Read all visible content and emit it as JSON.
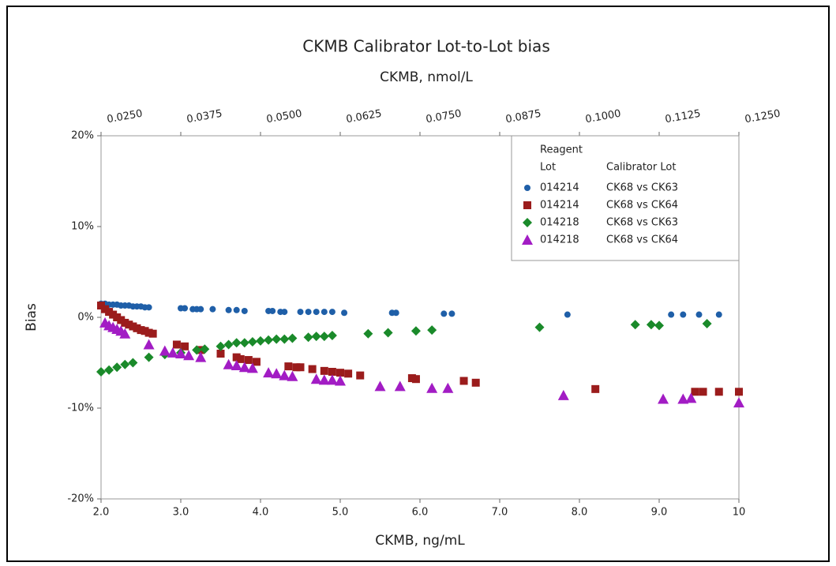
{
  "chart_data": {
    "type": "scatter",
    "title": "CKMB Calibrator Lot-to-Lot bias",
    "x2_label": "CKMB, nmol/L",
    "x_label": "CKMB, ng/mL",
    "y_label": "Bias",
    "xlim": [
      2,
      10
    ],
    "xticks": [
      {
        "value": 2,
        "label": "2.0"
      },
      {
        "value": 3,
        "label": "3.0"
      },
      {
        "value": 4,
        "label": "4.0"
      },
      {
        "value": 5,
        "label": "5.0"
      },
      {
        "value": 6,
        "label": "6.0"
      },
      {
        "value": 7,
        "label": "7.0"
      },
      {
        "value": 8,
        "label": "8.0"
      },
      {
        "value": 9,
        "label": "9.0"
      },
      10
    ],
    "x2lim": [
      0.025,
      0.125
    ],
    "x2ticks": [
      {
        "value": 0.025,
        "label": "0.0250"
      },
      {
        "value": 0.0375,
        "label": "0.0375"
      },
      {
        "value": 0.05,
        "label": "0.0500"
      },
      {
        "value": 0.0625,
        "label": "0.0625"
      },
      {
        "value": 0.075,
        "label": "0.0750"
      },
      {
        "value": 0.0875,
        "label": "0.0875"
      },
      {
        "value": 0.1,
        "label": "0.1000"
      },
      {
        "value": 0.1125,
        "label": "0.1125"
      },
      {
        "value": 0.125,
        "label": "0.1250"
      }
    ],
    "ylim": [
      -20,
      20
    ],
    "yticks": [
      {
        "value": -20,
        "label": "-20%"
      },
      {
        "value": -10,
        "label": "-10%"
      },
      {
        "value": 0,
        "label": "0%"
      },
      {
        "value": 10,
        "label": "10%"
      },
      {
        "value": 20,
        "label": "20%"
      }
    ],
    "legend_columns": [
      [
        "Reagent",
        "Lot"
      ],
      [
        "Calibrator Lot"
      ]
    ],
    "legend_position": "upper right",
    "series": [
      {
        "reagent_lot": "014214",
        "name": "CK68 vs CK63",
        "color": "#1f5fa8",
        "marker": "circle",
        "x": [
          2.0,
          2.05,
          2.1,
          2.15,
          2.2,
          2.25,
          2.3,
          2.35,
          2.4,
          2.45,
          2.5,
          2.55,
          2.6,
          3.0,
          3.05,
          3.15,
          3.2,
          3.25,
          3.4,
          3.6,
          3.7,
          3.8,
          4.1,
          4.15,
          4.25,
          4.3,
          4.5,
          4.6,
          4.7,
          4.8,
          4.9,
          5.05,
          5.65,
          5.7,
          6.3,
          6.4,
          7.85,
          9.15,
          9.3,
          9.5,
          9.75
        ],
        "values": [
          1.5,
          1.5,
          1.4,
          1.4,
          1.4,
          1.3,
          1.3,
          1.3,
          1.2,
          1.2,
          1.2,
          1.1,
          1.1,
          1.0,
          1.0,
          0.9,
          0.9,
          0.9,
          0.9,
          0.8,
          0.8,
          0.7,
          0.7,
          0.7,
          0.6,
          0.6,
          0.6,
          0.6,
          0.6,
          0.6,
          0.6,
          0.5,
          0.5,
          0.5,
          0.4,
          0.4,
          0.3,
          0.3,
          0.3,
          0.3,
          0.3
        ]
      },
      {
        "reagent_lot": "014214",
        "name": "CK68 vs CK64",
        "color": "#9b1c1c",
        "marker": "square",
        "x": [
          2.0,
          2.05,
          2.1,
          2.15,
          2.2,
          2.25,
          2.3,
          2.35,
          2.4,
          2.45,
          2.5,
          2.55,
          2.6,
          2.65,
          2.95,
          3.05,
          3.25,
          3.5,
          3.7,
          3.75,
          3.85,
          3.95,
          4.35,
          4.45,
          4.5,
          4.65,
          4.8,
          4.9,
          5.0,
          5.1,
          5.25,
          5.9,
          5.95,
          6.55,
          6.7,
          8.2,
          9.45,
          9.55,
          9.75,
          10.0
        ],
        "values": [
          1.3,
          0.9,
          0.6,
          0.3,
          0,
          -0.3,
          -0.6,
          -0.8,
          -1.0,
          -1.2,
          -1.4,
          -1.5,
          -1.7,
          -1.8,
          -3.0,
          -3.2,
          -3.6,
          -4.0,
          -4.4,
          -4.6,
          -4.7,
          -4.9,
          -5.4,
          -5.5,
          -5.5,
          -5.7,
          -5.9,
          -6.0,
          -6.1,
          -6.2,
          -6.4,
          -6.7,
          -6.8,
          -7.0,
          -7.2,
          -7.9,
          -8.2,
          -8.2,
          -8.2,
          -8.2
        ]
      },
      {
        "reagent_lot": "014218",
        "name": "CK68 vs CK63",
        "color": "#1a8a2a",
        "marker": "diamond",
        "x": [
          2.0,
          2.1,
          2.2,
          2.3,
          2.4,
          2.6,
          2.8,
          3.0,
          3.2,
          3.3,
          3.5,
          3.6,
          3.7,
          3.8,
          3.9,
          4.0,
          4.1,
          4.2,
          4.3,
          4.4,
          4.6,
          4.7,
          4.8,
          4.9,
          5.35,
          5.6,
          5.95,
          6.15,
          7.5,
          8.7,
          8.9,
          9.0,
          9.6
        ],
        "values": [
          -6.0,
          -5.8,
          -5.5,
          -5.2,
          -5.0,
          -4.4,
          -4.1,
          -3.9,
          -3.6,
          -3.5,
          -3.2,
          -3.0,
          -2.8,
          -2.8,
          -2.7,
          -2.6,
          -2.5,
          -2.4,
          -2.4,
          -2.3,
          -2.2,
          -2.1,
          -2.1,
          -2.0,
          -1.8,
          -1.7,
          -1.5,
          -1.4,
          -1.1,
          -0.8,
          -0.8,
          -0.9,
          -0.7
        ]
      },
      {
        "reagent_lot": "014218",
        "name": "CK68 vs CK64",
        "color": "#a21cc4",
        "marker": "triangle",
        "x": [
          2.05,
          2.1,
          2.15,
          2.2,
          2.25,
          2.3,
          2.6,
          2.8,
          2.9,
          3.0,
          3.1,
          3.25,
          3.6,
          3.7,
          3.8,
          3.9,
          4.1,
          4.2,
          4.3,
          4.4,
          4.7,
          4.8,
          4.9,
          5.0,
          5.5,
          5.75,
          6.15,
          6.35,
          7.8,
          9.05,
          9.3,
          9.4,
          10.0
        ],
        "values": [
          -0.6,
          -0.9,
          -1.1,
          -1.3,
          -1.5,
          -1.8,
          -3.0,
          -3.7,
          -3.9,
          -4.0,
          -4.2,
          -4.4,
          -5.2,
          -5.3,
          -5.5,
          -5.6,
          -6.1,
          -6.2,
          -6.4,
          -6.5,
          -6.8,
          -6.9,
          -6.9,
          -7.0,
          -7.6,
          -7.6,
          -7.8,
          -7.8,
          -8.6,
          -9.0,
          -9.0,
          -8.9,
          -9.4
        ]
      }
    ]
  }
}
